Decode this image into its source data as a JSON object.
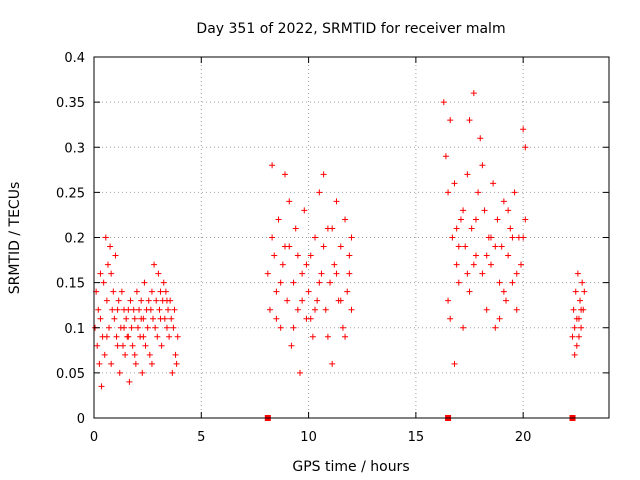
{
  "chart_data": {
    "type": "scatter",
    "title": "Day 351 of 2022, SRMTID for receiver malm",
    "xlabel": "GPS time / hours",
    "ylabel": "SRMTID / TECUs",
    "xlim": [
      0,
      24
    ],
    "ylim": [
      0,
      0.4
    ],
    "xticks": [
      "0",
      "5",
      "10",
      "15",
      "20"
    ],
    "yticks": [
      "0",
      "0.05",
      "0.1",
      "0.15",
      "0.2",
      "0.25",
      "0.3",
      "0.35",
      "0.4"
    ],
    "grid": true,
    "marker": "plus",
    "color": "#ff0000",
    "zero_markers": [
      {
        "x": 8.1,
        "y": 0
      },
      {
        "x": 16.5,
        "y": 0
      },
      {
        "x": 22.3,
        "y": 0
      }
    ],
    "series": [
      {
        "name": "malm",
        "points": [
          [
            0.05,
            0.1
          ],
          [
            0.1,
            0.14
          ],
          [
            0.15,
            0.08
          ],
          [
            0.2,
            0.12
          ],
          [
            0.25,
            0.06
          ],
          [
            0.3,
            0.11
          ],
          [
            0.35,
            0.035
          ],
          [
            0.4,
            0.09
          ],
          [
            0.45,
            0.15
          ],
          [
            0.5,
            0.07
          ],
          [
            0.55,
            0.2
          ],
          [
            0.6,
            0.13
          ],
          [
            0.65,
            0.17
          ],
          [
            0.7,
            0.1
          ],
          [
            0.75,
            0.19
          ],
          [
            0.8,
            0.16
          ],
          [
            0.85,
            0.12
          ],
          [
            0.9,
            0.14
          ],
          [
            0.95,
            0.11
          ],
          [
            1.0,
            0.18
          ],
          [
            1.05,
            0.09
          ],
          [
            1.1,
            0.12
          ],
          [
            1.15,
            0.13
          ],
          [
            1.2,
            0.05
          ],
          [
            1.25,
            0.1
          ],
          [
            1.3,
            0.14
          ],
          [
            1.35,
            0.08
          ],
          [
            1.4,
            0.12
          ],
          [
            1.45,
            0.07
          ],
          [
            1.5,
            0.11
          ],
          [
            1.55,
            0.09
          ],
          [
            1.6,
            0.12
          ],
          [
            1.65,
            0.04
          ],
          [
            1.7,
            0.13
          ],
          [
            1.75,
            0.1
          ],
          [
            1.8,
            0.08
          ],
          [
            1.85,
            0.12
          ],
          [
            1.9,
            0.11
          ],
          [
            1.95,
            0.06
          ],
          [
            2.0,
            0.14
          ],
          [
            2.05,
            0.1
          ],
          [
            2.1,
            0.12
          ],
          [
            2.15,
            0.09
          ],
          [
            2.2,
            0.13
          ],
          [
            2.25,
            0.05
          ],
          [
            2.3,
            0.11
          ],
          [
            2.35,
            0.15
          ],
          [
            2.4,
            0.08
          ],
          [
            2.45,
            0.12
          ],
          [
            2.5,
            0.1
          ],
          [
            2.55,
            0.13
          ],
          [
            2.6,
            0.07
          ],
          [
            2.65,
            0.12
          ],
          [
            2.7,
            0.14
          ],
          [
            2.75,
            0.11
          ],
          [
            2.8,
            0.17
          ],
          [
            2.85,
            0.1
          ],
          [
            2.9,
            0.13
          ],
          [
            2.95,
            0.09
          ],
          [
            3.0,
            0.16
          ],
          [
            3.05,
            0.12
          ],
          [
            3.1,
            0.14
          ],
          [
            3.15,
            0.08
          ],
          [
            3.2,
            0.13
          ],
          [
            3.25,
            0.15
          ],
          [
            3.3,
            0.11
          ],
          [
            3.35,
            0.14
          ],
          [
            3.4,
            0.1
          ],
          [
            3.45,
            0.12
          ],
          [
            3.5,
            0.09
          ],
          [
            3.55,
            0.13
          ],
          [
            3.6,
            0.11
          ],
          [
            3.65,
            0.05
          ],
          [
            3.7,
            0.1
          ],
          [
            3.75,
            0.12
          ],
          [
            3.8,
            0.07
          ],
          [
            3.85,
            0.06
          ],
          [
            3.9,
            0.09
          ],
          [
            0.3,
            0.16
          ],
          [
            0.6,
            0.09
          ],
          [
            1.1,
            0.08
          ],
          [
            1.4,
            0.1
          ],
          [
            1.9,
            0.07
          ],
          [
            2.3,
            0.09
          ],
          [
            2.7,
            0.06
          ],
          [
            3.1,
            0.11
          ],
          [
            3.4,
            0.13
          ],
          [
            0.8,
            0.06
          ],
          [
            2.2,
            0.11
          ],
          [
            1.6,
            0.09
          ],
          [
            8.1,
            0.16
          ],
          [
            8.2,
            0.12
          ],
          [
            8.3,
            0.28
          ],
          [
            8.4,
            0.18
          ],
          [
            8.5,
            0.14
          ],
          [
            8.6,
            0.22
          ],
          [
            8.7,
            0.1
          ],
          [
            8.8,
            0.17
          ],
          [
            8.9,
            0.27
          ],
          [
            9.0,
            0.13
          ],
          [
            9.1,
            0.19
          ],
          [
            9.2,
            0.08
          ],
          [
            9.3,
            0.15
          ],
          [
            9.4,
            0.21
          ],
          [
            9.5,
            0.12
          ],
          [
            9.6,
            0.05
          ],
          [
            9.7,
            0.16
          ],
          [
            9.8,
            0.23
          ],
          [
            9.9,
            0.11
          ],
          [
            10.0,
            0.14
          ],
          [
            10.1,
            0.18
          ],
          [
            10.2,
            0.09
          ],
          [
            10.3,
            0.2
          ],
          [
            10.4,
            0.13
          ],
          [
            10.5,
            0.25
          ],
          [
            10.6,
            0.16
          ],
          [
            10.7,
            0.27
          ],
          [
            10.8,
            0.12
          ],
          [
            10.9,
            0.21
          ],
          [
            11.0,
            0.15
          ],
          [
            11.1,
            0.06
          ],
          [
            11.2,
            0.17
          ],
          [
            11.3,
            0.24
          ],
          [
            11.4,
            0.13
          ],
          [
            11.5,
            0.19
          ],
          [
            11.6,
            0.1
          ],
          [
            11.7,
            0.22
          ],
          [
            11.8,
            0.14
          ],
          [
            11.9,
            0.16
          ],
          [
            12.0,
            0.12
          ],
          [
            8.3,
            0.2
          ],
          [
            8.7,
            0.15
          ],
          [
            9.1,
            0.24
          ],
          [
            9.5,
            0.18
          ],
          [
            9.9,
            0.17
          ],
          [
            10.3,
            0.12
          ],
          [
            10.7,
            0.19
          ],
          [
            11.1,
            0.21
          ],
          [
            11.5,
            0.13
          ],
          [
            11.9,
            0.18
          ],
          [
            8.5,
            0.11
          ],
          [
            9.3,
            0.1
          ],
          [
            10.1,
            0.11
          ],
          [
            10.9,
            0.09
          ],
          [
            11.7,
            0.09
          ],
          [
            9.7,
            0.13
          ],
          [
            10.5,
            0.15
          ],
          [
            11.3,
            0.16
          ],
          [
            8.9,
            0.19
          ],
          [
            12.0,
            0.2
          ],
          [
            16.3,
            0.35
          ],
          [
            16.4,
            0.29
          ],
          [
            16.5,
            0.25
          ],
          [
            16.6,
            0.11
          ],
          [
            16.7,
            0.2
          ],
          [
            16.8,
            0.06
          ],
          [
            16.9,
            0.17
          ],
          [
            17.0,
            0.15
          ],
          [
            17.1,
            0.22
          ],
          [
            17.2,
            0.1
          ],
          [
            17.3,
            0.19
          ],
          [
            17.4,
            0.27
          ],
          [
            17.5,
            0.14
          ],
          [
            17.6,
            0.21
          ],
          [
            17.7,
            0.36
          ],
          [
            17.8,
            0.18
          ],
          [
            17.9,
            0.25
          ],
          [
            18.0,
            0.31
          ],
          [
            18.1,
            0.16
          ],
          [
            18.2,
            0.23
          ],
          [
            18.3,
            0.12
          ],
          [
            18.4,
            0.2
          ],
          [
            18.5,
            0.17
          ],
          [
            18.6,
            0.26
          ],
          [
            18.7,
            0.1
          ],
          [
            18.8,
            0.22
          ],
          [
            18.9,
            0.15
          ],
          [
            19.0,
            0.19
          ],
          [
            19.1,
            0.24
          ],
          [
            19.2,
            0.13
          ],
          [
            19.3,
            0.18
          ],
          [
            19.4,
            0.21
          ],
          [
            19.5,
            0.15
          ],
          [
            19.6,
            0.25
          ],
          [
            19.7,
            0.12
          ],
          [
            19.8,
            0.2
          ],
          [
            19.9,
            0.17
          ],
          [
            20.0,
            0.32
          ],
          [
            20.1,
            0.22
          ],
          [
            20.1,
            0.3
          ],
          [
            16.6,
            0.33
          ],
          [
            16.8,
            0.26
          ],
          [
            17.0,
            0.19
          ],
          [
            17.2,
            0.23
          ],
          [
            17.5,
            0.33
          ],
          [
            17.8,
            0.22
          ],
          [
            18.1,
            0.28
          ],
          [
            18.5,
            0.2
          ],
          [
            18.9,
            0.11
          ],
          [
            19.3,
            0.23
          ],
          [
            19.7,
            0.16
          ],
          [
            20.0,
            0.2
          ],
          [
            16.5,
            0.13
          ],
          [
            17.4,
            0.16
          ],
          [
            18.3,
            0.18
          ],
          [
            19.1,
            0.14
          ],
          [
            16.9,
            0.21
          ],
          [
            17.7,
            0.17
          ],
          [
            18.7,
            0.19
          ],
          [
            19.5,
            0.2
          ],
          [
            22.3,
            0.09
          ],
          [
            22.35,
            0.12
          ],
          [
            22.4,
            0.1
          ],
          [
            22.45,
            0.14
          ],
          [
            22.5,
            0.08
          ],
          [
            22.55,
            0.16
          ],
          [
            22.6,
            0.11
          ],
          [
            22.65,
            0.13
          ],
          [
            22.7,
            0.1
          ],
          [
            22.75,
            0.15
          ],
          [
            22.8,
            0.12
          ],
          [
            22.85,
            0.14
          ],
          [
            22.4,
            0.07
          ],
          [
            22.6,
            0.09
          ],
          [
            22.7,
            0.12
          ],
          [
            22.5,
            0.11
          ]
        ]
      }
    ]
  }
}
